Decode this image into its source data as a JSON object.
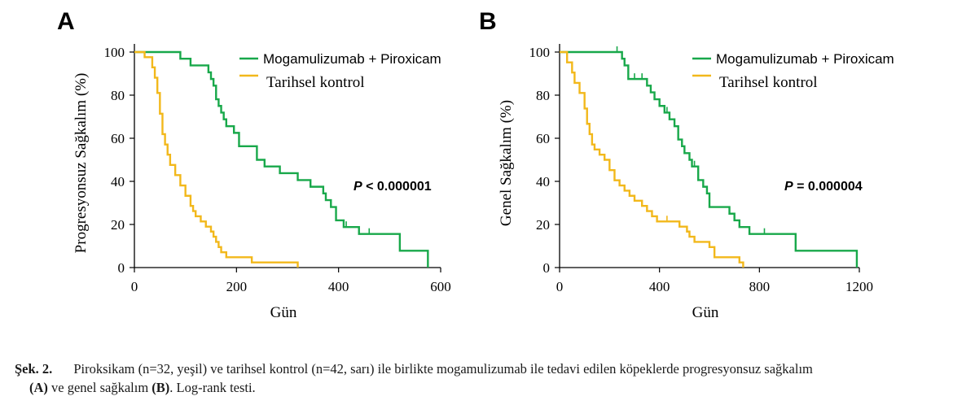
{
  "colors": {
    "treatment": "#18a84a",
    "control": "#f2b81b",
    "axis": "#000000"
  },
  "chart_data": [
    {
      "type": "line",
      "panel_label": "A",
      "xlabel": "Gün",
      "ylabel": "Progresyonsuz Sağkalım (%)",
      "xlim": [
        0,
        600
      ],
      "ylim": [
        0,
        100
      ],
      "xticks": [
        0,
        200,
        400,
        600
      ],
      "yticks": [
        0,
        20,
        40,
        60,
        80,
        100
      ],
      "p_value": {
        "prefix": "P",
        "text": " < 0.000001"
      },
      "legend_placement": "top-right",
      "series": [
        {
          "name": "Mogamulizumab + Piroxicam",
          "color_key": "treatment",
          "x": [
            0,
            70,
            90,
            110,
            145,
            150,
            155,
            160,
            165,
            170,
            175,
            180,
            195,
            205,
            230,
            240,
            255,
            285,
            320,
            345,
            350,
            370,
            375,
            385,
            395,
            410,
            440,
            460,
            490,
            520,
            560,
            575
          ],
          "y": [
            100,
            100,
            96.9,
            93.8,
            90.6,
            87.5,
            84.4,
            78.1,
            75,
            71.9,
            68.8,
            65.6,
            62.5,
            56.3,
            56.3,
            50,
            46.9,
            43.8,
            40.6,
            37.5,
            37.5,
            34.4,
            31.3,
            28.1,
            21.9,
            18.8,
            15.6,
            15.6,
            15.6,
            7.8,
            7.8,
            0
          ],
          "censored_x": [
            415,
            460
          ]
        },
        {
          "name": "Tarihsel kontrol",
          "color_key": "control",
          "x": [
            0,
            20,
            35,
            40,
            45,
            50,
            55,
            60,
            65,
            70,
            80,
            90,
            100,
            110,
            115,
            120,
            130,
            140,
            150,
            155,
            160,
            165,
            170,
            180,
            195,
            230,
            245,
            320
          ],
          "y": [
            100,
            97.6,
            92.9,
            88.1,
            81,
            71.4,
            61.9,
            57.1,
            52.4,
            47.6,
            42.9,
            38.1,
            33.3,
            28.6,
            26.2,
            23.8,
            21.4,
            19,
            16.7,
            14.3,
            11.9,
            9.5,
            7.1,
            4.8,
            4.8,
            2.4,
            2.4,
            0
          ]
        }
      ]
    },
    {
      "type": "line",
      "panel_label": "B",
      "xlabel": "Gün",
      "ylabel": "Genel Sağkalım (%)",
      "xlim": [
        0,
        1200
      ],
      "ylim": [
        0,
        100
      ],
      "xticks": [
        0,
        400,
        800,
        1200
      ],
      "yticks": [
        0,
        20,
        40,
        60,
        80,
        100
      ],
      "p_value": {
        "prefix": "P",
        "text": " = 0.000004"
      },
      "legend_placement": "top-right",
      "series": [
        {
          "name": "Mogamulizumab + Piroxicam",
          "color_key": "treatment",
          "x": [
            0,
            240,
            250,
            260,
            275,
            310,
            340,
            350,
            365,
            380,
            400,
            420,
            440,
            460,
            475,
            490,
            500,
            520,
            530,
            545,
            555,
            575,
            590,
            600,
            640,
            680,
            700,
            720,
            760,
            810,
            860,
            900,
            945,
            1000,
            1100,
            1190
          ],
          "y": [
            100,
            100,
            96.9,
            93.8,
            87.5,
            87.5,
            87.5,
            84.4,
            81.3,
            78.1,
            75,
            71.9,
            68.8,
            65.6,
            59.4,
            56.3,
            53.1,
            50,
            46.9,
            46.9,
            40.6,
            37.5,
            34.4,
            28.1,
            28.1,
            25,
            21.9,
            18.8,
            15.6,
            15.6,
            15.6,
            15.6,
            7.8,
            7.8,
            7.8,
            0
          ],
          "censored_x": [
            230,
            300,
            330,
            430,
            540,
            820
          ]
        },
        {
          "name": "Tarihsel kontrol",
          "color_key": "control",
          "x": [
            0,
            30,
            50,
            60,
            80,
            100,
            110,
            120,
            130,
            140,
            160,
            180,
            200,
            220,
            240,
            260,
            280,
            300,
            330,
            350,
            370,
            390,
            420,
            450,
            480,
            510,
            520,
            540,
            580,
            600,
            620,
            680,
            720,
            735
          ],
          "y": [
            100,
            95.2,
            90.5,
            85.7,
            81,
            73.8,
            66.7,
            61.9,
            57.1,
            54.8,
            52.4,
            50,
            45.2,
            40.5,
            38.1,
            35.7,
            33.3,
            31,
            28.6,
            26.2,
            23.8,
            21.4,
            21.4,
            21.4,
            19,
            16.7,
            14.3,
            11.9,
            11.9,
            9.5,
            4.8,
            4.8,
            2.4,
            0
          ],
          "censored_x": [
            430
          ]
        }
      ]
    }
  ],
  "caption": {
    "label": "Şek. 2.",
    "line1": "Piroksikam (n=32, yeşil) ve tarihsel kontrol (n=42, sarı) ile birlikte mogamulizumab ile tedavi edilen köpeklerde progresyonsuz sağkalım",
    "panel_a": "(A)",
    "mid": " ve genel sağkalım ",
    "panel_b": "(B)",
    "end": ". Log-rank testi."
  }
}
